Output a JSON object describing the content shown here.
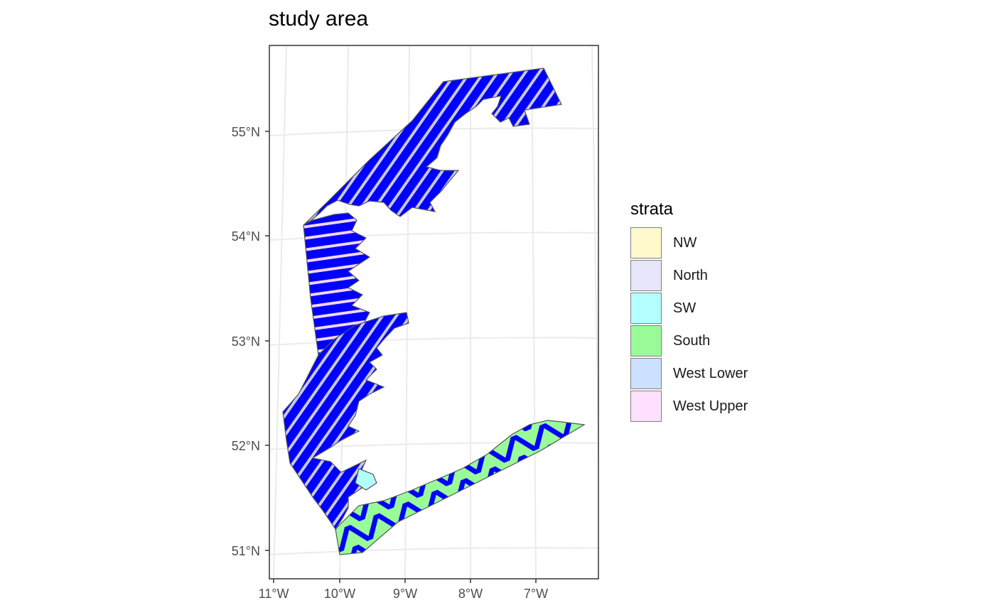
{
  "title": "study area",
  "legend": {
    "title": "strata",
    "items": [
      {
        "label": "NW",
        "color": "#FFF9CC"
      },
      {
        "label": "North",
        "color": "#E6E6FA"
      },
      {
        "label": "SW",
        "color": "#B3FFFF"
      },
      {
        "label": "South",
        "color": "#99FB98"
      },
      {
        "label": "West Lower",
        "color": "#CCE0FF"
      },
      {
        "label": "West Upper",
        "color": "#FFE0FF"
      }
    ]
  },
  "axes": {
    "x_ticks": [
      "11°W",
      "10°W",
      "9°W",
      "8°W",
      "7°W"
    ],
    "y_ticks": [
      "55°N",
      "54°N",
      "53°N",
      "52°N",
      "51°N"
    ]
  },
  "colors": {
    "transect": "#0000FF",
    "outline": "#555555",
    "grid": "#EBEBEB",
    "panel_border": "#333333"
  }
}
